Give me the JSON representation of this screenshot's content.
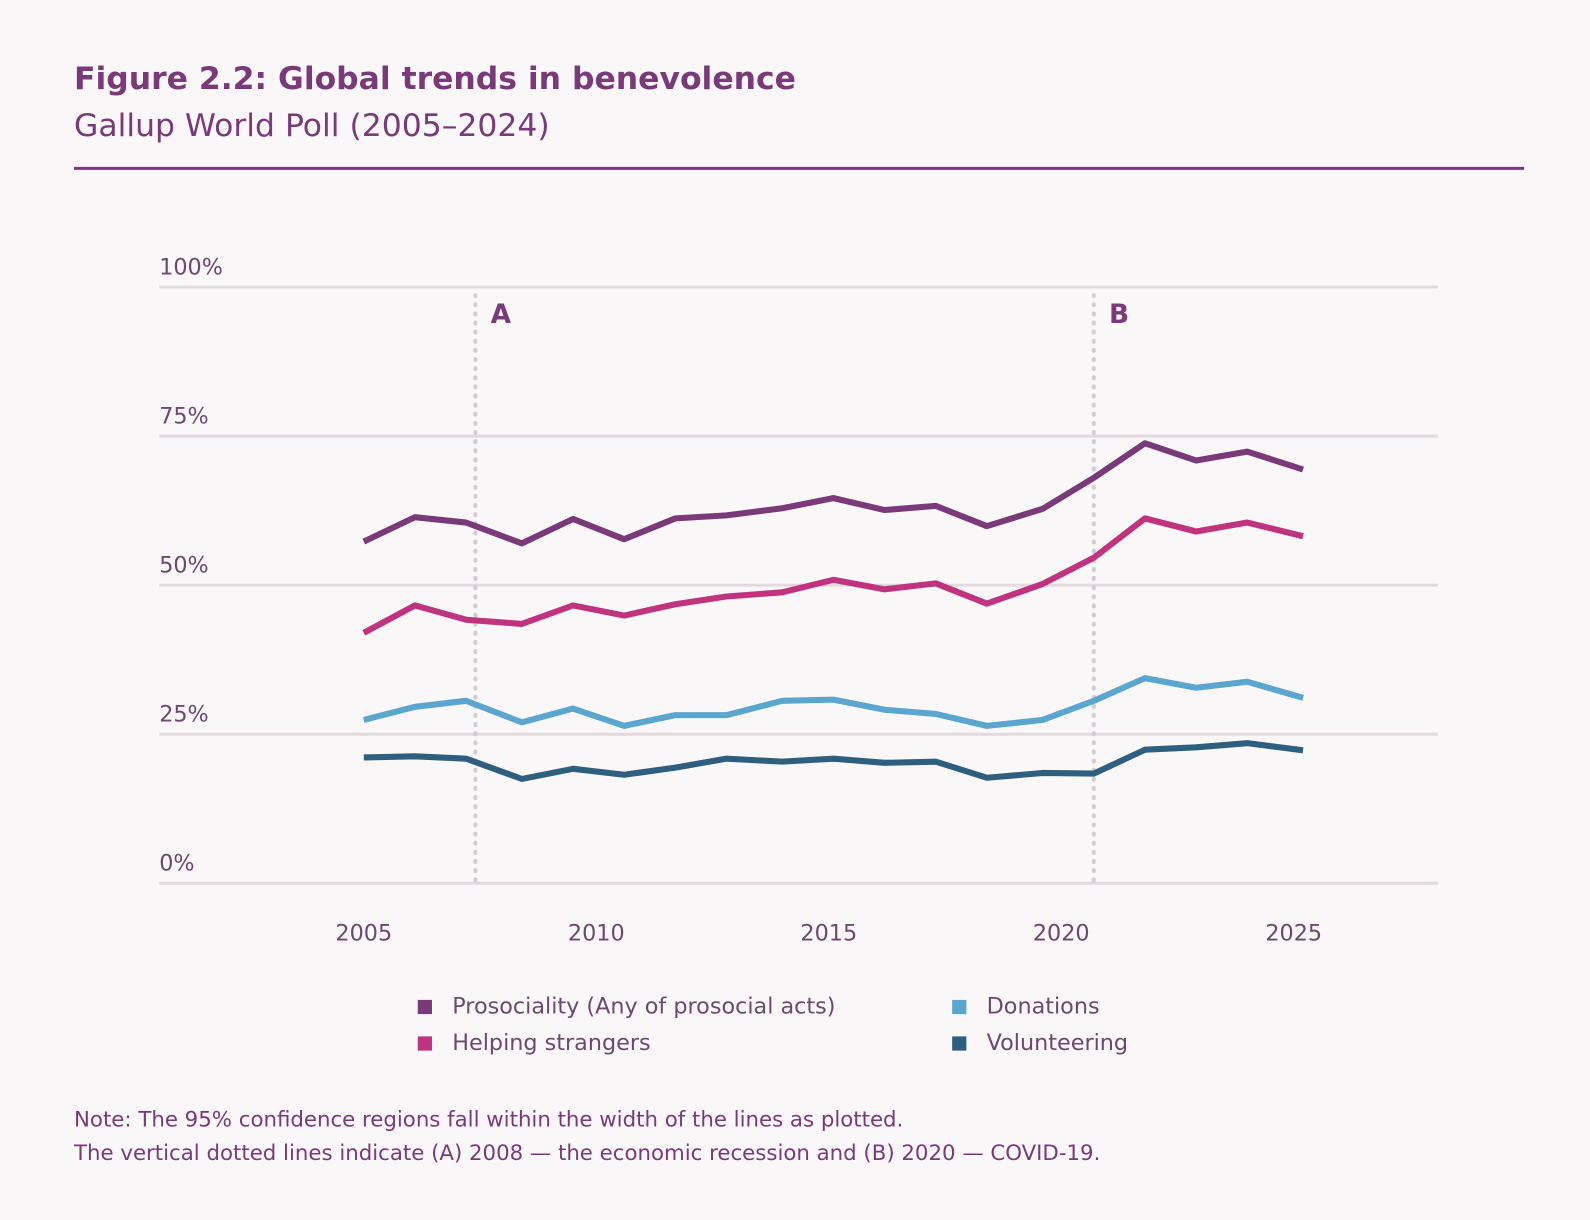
{
  "chart_data": {
    "type": "line",
    "title": "Figure 2.2: Global trends in benevolence",
    "subtitle": "Gallup World Poll (2005–2024)",
    "notes": [
      "Note: The 95% confidence regions fall within the width of the lines as plotted.",
      "The vertical dotted lines indicate (A) 2008 — the economic recession and (B) 2020 — COVID-19."
    ],
    "x": [
      2005,
      2006.1,
      2007.2,
      2008.4,
      2009.5,
      2010.6,
      2011.7,
      2012.8,
      2014.0,
      2015.1,
      2016.2,
      2017.3,
      2018.4,
      2019.6,
      2020.7,
      2021.8,
      2022.9,
      2024.0,
      2025.2
    ],
    "series": [
      {
        "name": "Prosociality (Any of prosocial acts)",
        "color": "#7a3a7a",
        "values": [
          57.3,
          61.4,
          60.5,
          57.0,
          61.1,
          57.7,
          61.2,
          61.7,
          62.9,
          64.6,
          62.6,
          63.3,
          59.9,
          62.8,
          68.0,
          73.8,
          70.9,
          72.4,
          69.4
        ]
      },
      {
        "name": "Helping strangers",
        "color": "#c0347f",
        "values": [
          42.0,
          46.6,
          44.2,
          43.5,
          46.6,
          44.9,
          46.8,
          48.1,
          48.8,
          50.9,
          49.3,
          50.3,
          46.9,
          50.2,
          54.6,
          61.2,
          59.0,
          60.5,
          58.2
        ]
      },
      {
        "name": "Donations",
        "color": "#5aa6cf",
        "values": [
          27.4,
          29.6,
          30.6,
          27.0,
          29.3,
          26.4,
          28.2,
          28.2,
          30.6,
          30.8,
          29.1,
          28.4,
          26.4,
          27.4,
          30.6,
          34.4,
          32.8,
          33.8,
          31.1
        ]
      },
      {
        "name": "Volunteering",
        "color": "#2f5f7f",
        "values": [
          21.1,
          21.3,
          20.9,
          17.5,
          19.2,
          18.2,
          19.4,
          20.9,
          20.4,
          20.9,
          20.2,
          20.4,
          17.7,
          18.5,
          18.4,
          22.4,
          22.8,
          23.5,
          22.3
        ]
      }
    ],
    "annotations": [
      {
        "label": "A",
        "x": 2007.4
      },
      {
        "label": "B",
        "x": 2020.7
      }
    ],
    "xlim": [
      2000.6,
      2028.1
    ],
    "xticks": [
      2005,
      2010,
      2015,
      2020,
      2025
    ],
    "ylim": [
      0,
      100
    ],
    "yticks": [
      {
        "value": 0,
        "label": "0%"
      },
      {
        "value": 25,
        "label": "25%"
      },
      {
        "value": 50,
        "label": "50%"
      },
      {
        "value": 75,
        "label": "75%"
      },
      {
        "value": 100,
        "label": "100%"
      }
    ],
    "grid": true
  }
}
